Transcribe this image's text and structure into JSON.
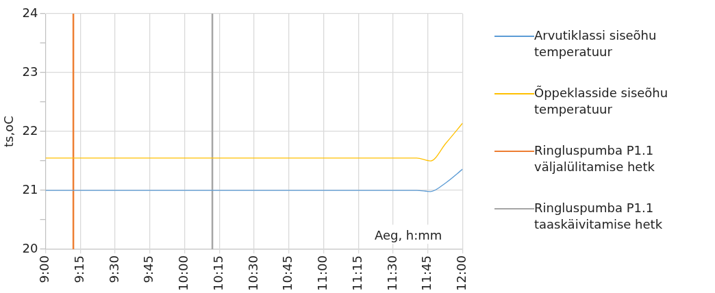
{
  "chart_data": {
    "type": "line",
    "xlabel": "Aeg, h:mm",
    "ylabel": "ts,oC",
    "xlim": [
      9,
      12
    ],
    "xticks": [
      {
        "value": 9,
        "label": "9:00"
      },
      {
        "value": 9.25,
        "label": "9:15"
      },
      {
        "value": 9.5,
        "label": "9:30"
      },
      {
        "value": 9.75,
        "label": "9:45"
      },
      {
        "value": 10,
        "label": "10:00"
      },
      {
        "value": 10.25,
        "label": "10:15"
      },
      {
        "value": 10.5,
        "label": "10:30"
      },
      {
        "value": 10.75,
        "label": "10:45"
      },
      {
        "value": 11,
        "label": "11:00"
      },
      {
        "value": 11.25,
        "label": "11:15"
      },
      {
        "value": 11.5,
        "label": "11:30"
      },
      {
        "value": 11.75,
        "label": "11:45"
      },
      {
        "value": 12,
        "label": "12:00"
      }
    ],
    "ylim": [
      20,
      24
    ],
    "yticks": [
      20,
      {
        "value": 20.5,
        "label": null
      },
      21,
      {
        "value": 21.5,
        "label": null
      },
      22,
      {
        "value": 22.5,
        "label": null
      },
      23,
      {
        "value": 23.5,
        "label": null
      },
      24
    ],
    "grid": true,
    "legend": "right",
    "marker": "none",
    "line_style": "solid",
    "series": [
      {
        "name": "Arvutiklassi siseõhu temperatuur",
        "color": "#5b9bd5",
        "x": [
          9,
          11.67,
          11.77,
          11.88,
          12
        ],
        "values": [
          21.0,
          21.0,
          20.98,
          21.13,
          21.36
        ]
      },
      {
        "name": "Õppeklasside siseõhu temperatuur",
        "color": "#ffc000",
        "x": [
          9,
          11.67,
          11.77,
          11.88,
          12
        ],
        "values": [
          21.55,
          21.55,
          21.5,
          21.8,
          22.14
        ]
      },
      {
        "name": "Ringluspumba P1.1 väljalülitamise hetk",
        "color": "#ed7d31",
        "x": [
          9.2,
          9.2
        ],
        "values": [
          20,
          24
        ]
      },
      {
        "name": "Ringluspumba P1.1 taaskäivitamise hetk",
        "color": "#a5a5a5",
        "x": [
          10.2,
          10.2
        ],
        "values": [
          20,
          24
        ]
      }
    ]
  }
}
